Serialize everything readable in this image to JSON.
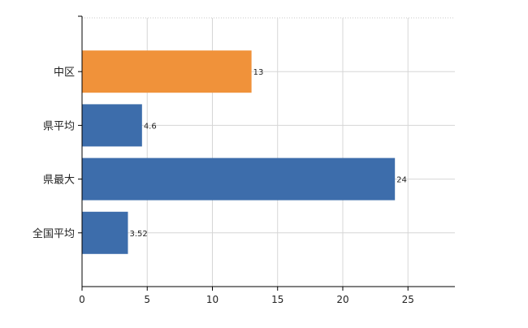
{
  "chart_data": {
    "type": "bar",
    "orientation": "horizontal",
    "categories": [
      "中区",
      "県平均",
      "県最大",
      "全国平均"
    ],
    "values": [
      13,
      4.6,
      24,
      3.52
    ],
    "value_labels": [
      "13",
      "4.6",
      "24",
      "3.52"
    ],
    "bar_colors": [
      "#f0923a",
      "#3d6dab",
      "#3d6dab",
      "#3d6dab"
    ],
    "title": "",
    "xlabel": "",
    "ylabel": "",
    "xlim": [
      0,
      28.6
    ],
    "xticks": [
      0,
      5,
      10,
      15,
      20,
      25
    ],
    "grid": true,
    "legend": "none"
  }
}
